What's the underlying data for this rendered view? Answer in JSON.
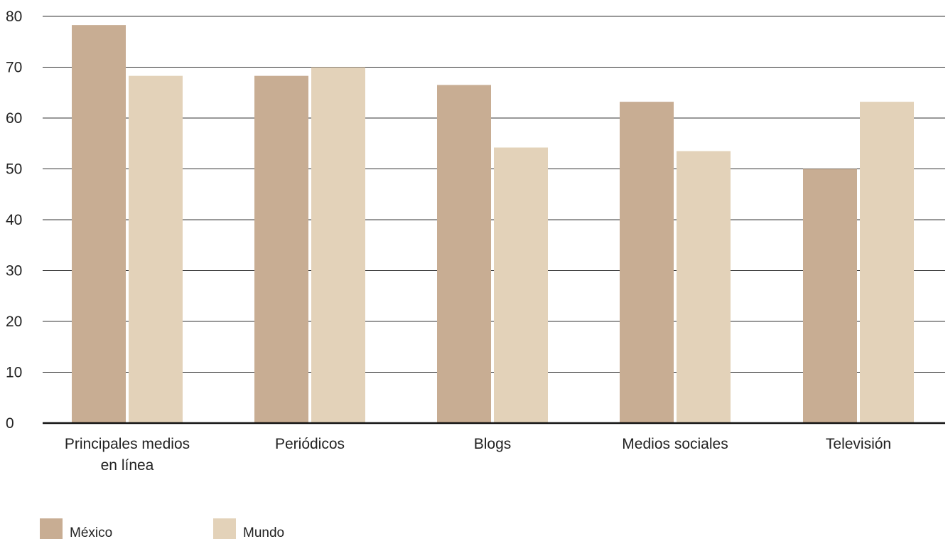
{
  "chart_data": {
    "type": "bar",
    "categories": [
      [
        "Principales medios",
        "en línea"
      ],
      [
        "Periódicos"
      ],
      [
        "Blogs"
      ],
      [
        "Medios sociales"
      ],
      [
        "Televisión"
      ]
    ],
    "series": [
      {
        "name": "México",
        "color": "#c8ad93",
        "values": [
          78.3,
          68.3,
          66.5,
          63.2,
          50.0
        ]
      },
      {
        "name": "Mundo",
        "color": "#e3d2b9",
        "values": [
          68.3,
          70.0,
          54.2,
          53.5,
          63.2
        ]
      }
    ],
    "y_ticks": [
      "0",
      "10",
      "20",
      "30",
      "40",
      "50",
      "60",
      "70",
      "80"
    ],
    "ylim": [
      0,
      80
    ],
    "grid": true,
    "legend_position": "bottom-left",
    "title": "",
    "xlabel": "",
    "ylabel": ""
  }
}
